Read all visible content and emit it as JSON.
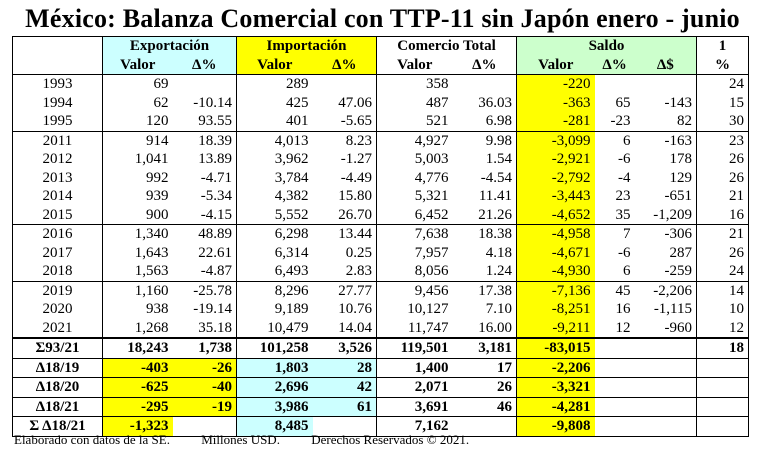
{
  "title": "México: Balanza Comercial con TTP-11 sin Japón enero - junio",
  "groups": {
    "export": "Exportación",
    "import": "Importación",
    "total": "Comercio Total",
    "saldo": "Saldo",
    "rank": "1"
  },
  "subheaders": {
    "valor": "Valor",
    "delta_pct": "Δ%",
    "delta_usd": "Δ$",
    "pct": "%"
  },
  "rows": [
    {
      "year": "1993",
      "ev": "69",
      "ed": "",
      "iv": "289",
      "id": "",
      "tv": "358",
      "td": "",
      "sv": "-220",
      "sp": "",
      "sd": "",
      "p": "24"
    },
    {
      "year": "1994",
      "ev": "62",
      "ed": "-10.14",
      "iv": "425",
      "id": "47.06",
      "tv": "487",
      "td": "36.03",
      "sv": "-363",
      "sp": "65",
      "sd": "-143",
      "p": "15"
    },
    {
      "year": "1995",
      "ev": "120",
      "ed": "93.55",
      "iv": "401",
      "id": "-5.65",
      "tv": "521",
      "td": "6.98",
      "sv": "-281",
      "sp": "-23",
      "sd": "82",
      "p": "30"
    },
    {
      "year": "2011",
      "ev": "914",
      "ed": "18.39",
      "iv": "4,013",
      "id": "8.23",
      "tv": "4,927",
      "td": "9.98",
      "sv": "-3,099",
      "sp": "6",
      "sd": "-163",
      "p": "23"
    },
    {
      "year": "2012",
      "ev": "1,041",
      "ed": "13.89",
      "iv": "3,962",
      "id": "-1.27",
      "tv": "5,003",
      "td": "1.54",
      "sv": "-2,921",
      "sp": "-6",
      "sd": "178",
      "p": "26"
    },
    {
      "year": "2013",
      "ev": "992",
      "ed": "-4.71",
      "iv": "3,784",
      "id": "-4.49",
      "tv": "4,776",
      "td": "-4.54",
      "sv": "-2,792",
      "sp": "-4",
      "sd": "129",
      "p": "26"
    },
    {
      "year": "2014",
      "ev": "939",
      "ed": "-5.34",
      "iv": "4,382",
      "id": "15.80",
      "tv": "5,321",
      "td": "11.41",
      "sv": "-3,443",
      "sp": "23",
      "sd": "-651",
      "p": "21"
    },
    {
      "year": "2015",
      "ev": "900",
      "ed": "-4.15",
      "iv": "5,552",
      "id": "26.70",
      "tv": "6,452",
      "td": "21.26",
      "sv": "-4,652",
      "sp": "35",
      "sd": "-1,209",
      "p": "16"
    },
    {
      "year": "2016",
      "ev": "1,340",
      "ed": "48.89",
      "iv": "6,298",
      "id": "13.44",
      "tv": "7,638",
      "td": "18.38",
      "sv": "-4,958",
      "sp": "7",
      "sd": "-306",
      "p": "21"
    },
    {
      "year": "2017",
      "ev": "1,643",
      "ed": "22.61",
      "iv": "6,314",
      "id": "0.25",
      "tv": "7,957",
      "td": "4.18",
      "sv": "-4,671",
      "sp": "-6",
      "sd": "287",
      "p": "26"
    },
    {
      "year": "2018",
      "ev": "1,563",
      "ed": "-4.87",
      "iv": "6,493",
      "id": "2.83",
      "tv": "8,056",
      "td": "1.24",
      "sv": "-4,930",
      "sp": "6",
      "sd": "-259",
      "p": "24"
    },
    {
      "year": "2019",
      "ev": "1,160",
      "ed": "-25.78",
      "iv": "8,296",
      "id": "27.77",
      "tv": "9,456",
      "td": "17.38",
      "sv": "-7,136",
      "sp": "45",
      "sd": "-2,206",
      "p": "14"
    },
    {
      "year": "2020",
      "ev": "938",
      "ed": "-19.14",
      "iv": "9,189",
      "id": "10.76",
      "tv": "10,127",
      "td": "7.10",
      "sv": "-8,251",
      "sp": "16",
      "sd": "-1,115",
      "p": "10"
    },
    {
      "year": "2021",
      "ev": "1,268",
      "ed": "35.18",
      "iv": "10,479",
      "id": "14.04",
      "tv": "11,747",
      "td": "16.00",
      "sv": "-9,211",
      "sp": "12",
      "sd": "-960",
      "p": "12"
    }
  ],
  "summary": [
    {
      "label": "Σ93/21",
      "ev": "18,243",
      "ed": "1,738",
      "iv": "101,258",
      "id": "3,526",
      "tv": "119,501",
      "td": "3,181",
      "sv": "-83,015",
      "p": "18"
    },
    {
      "label": "Δ18/19",
      "ev": "-403",
      "ed": "-26",
      "iv": "1,803",
      "id": "28",
      "tv": "1,400",
      "td": "17",
      "sv": "-2,206",
      "p": ""
    },
    {
      "label": "Δ18/20",
      "ev": "-625",
      "ed": "-40",
      "iv": "2,696",
      "id": "42",
      "tv": "2,071",
      "td": "26",
      "sv": "-3,321",
      "p": ""
    },
    {
      "label": "Δ18/21",
      "ev": "-295",
      "ed": "-19",
      "iv": "3,986",
      "id": "61",
      "tv": "3,691",
      "td": "46",
      "sv": "-4,281",
      "p": ""
    },
    {
      "label": "Σ Δ18/21",
      "ev": "-1,323",
      "ed": "",
      "iv": "8,485",
      "id": "",
      "tv": "7,162",
      "td": "",
      "sv": "-9,808",
      "p": ""
    }
  ],
  "footer": {
    "source": "Elaborado con datos de la SE.",
    "units": "Millones USD.",
    "rights": "Derechos Reservados © 2021."
  },
  "colors": {
    "cyan": "#ccffff",
    "yellow": "#ffff00",
    "green": "#ccffcc"
  }
}
